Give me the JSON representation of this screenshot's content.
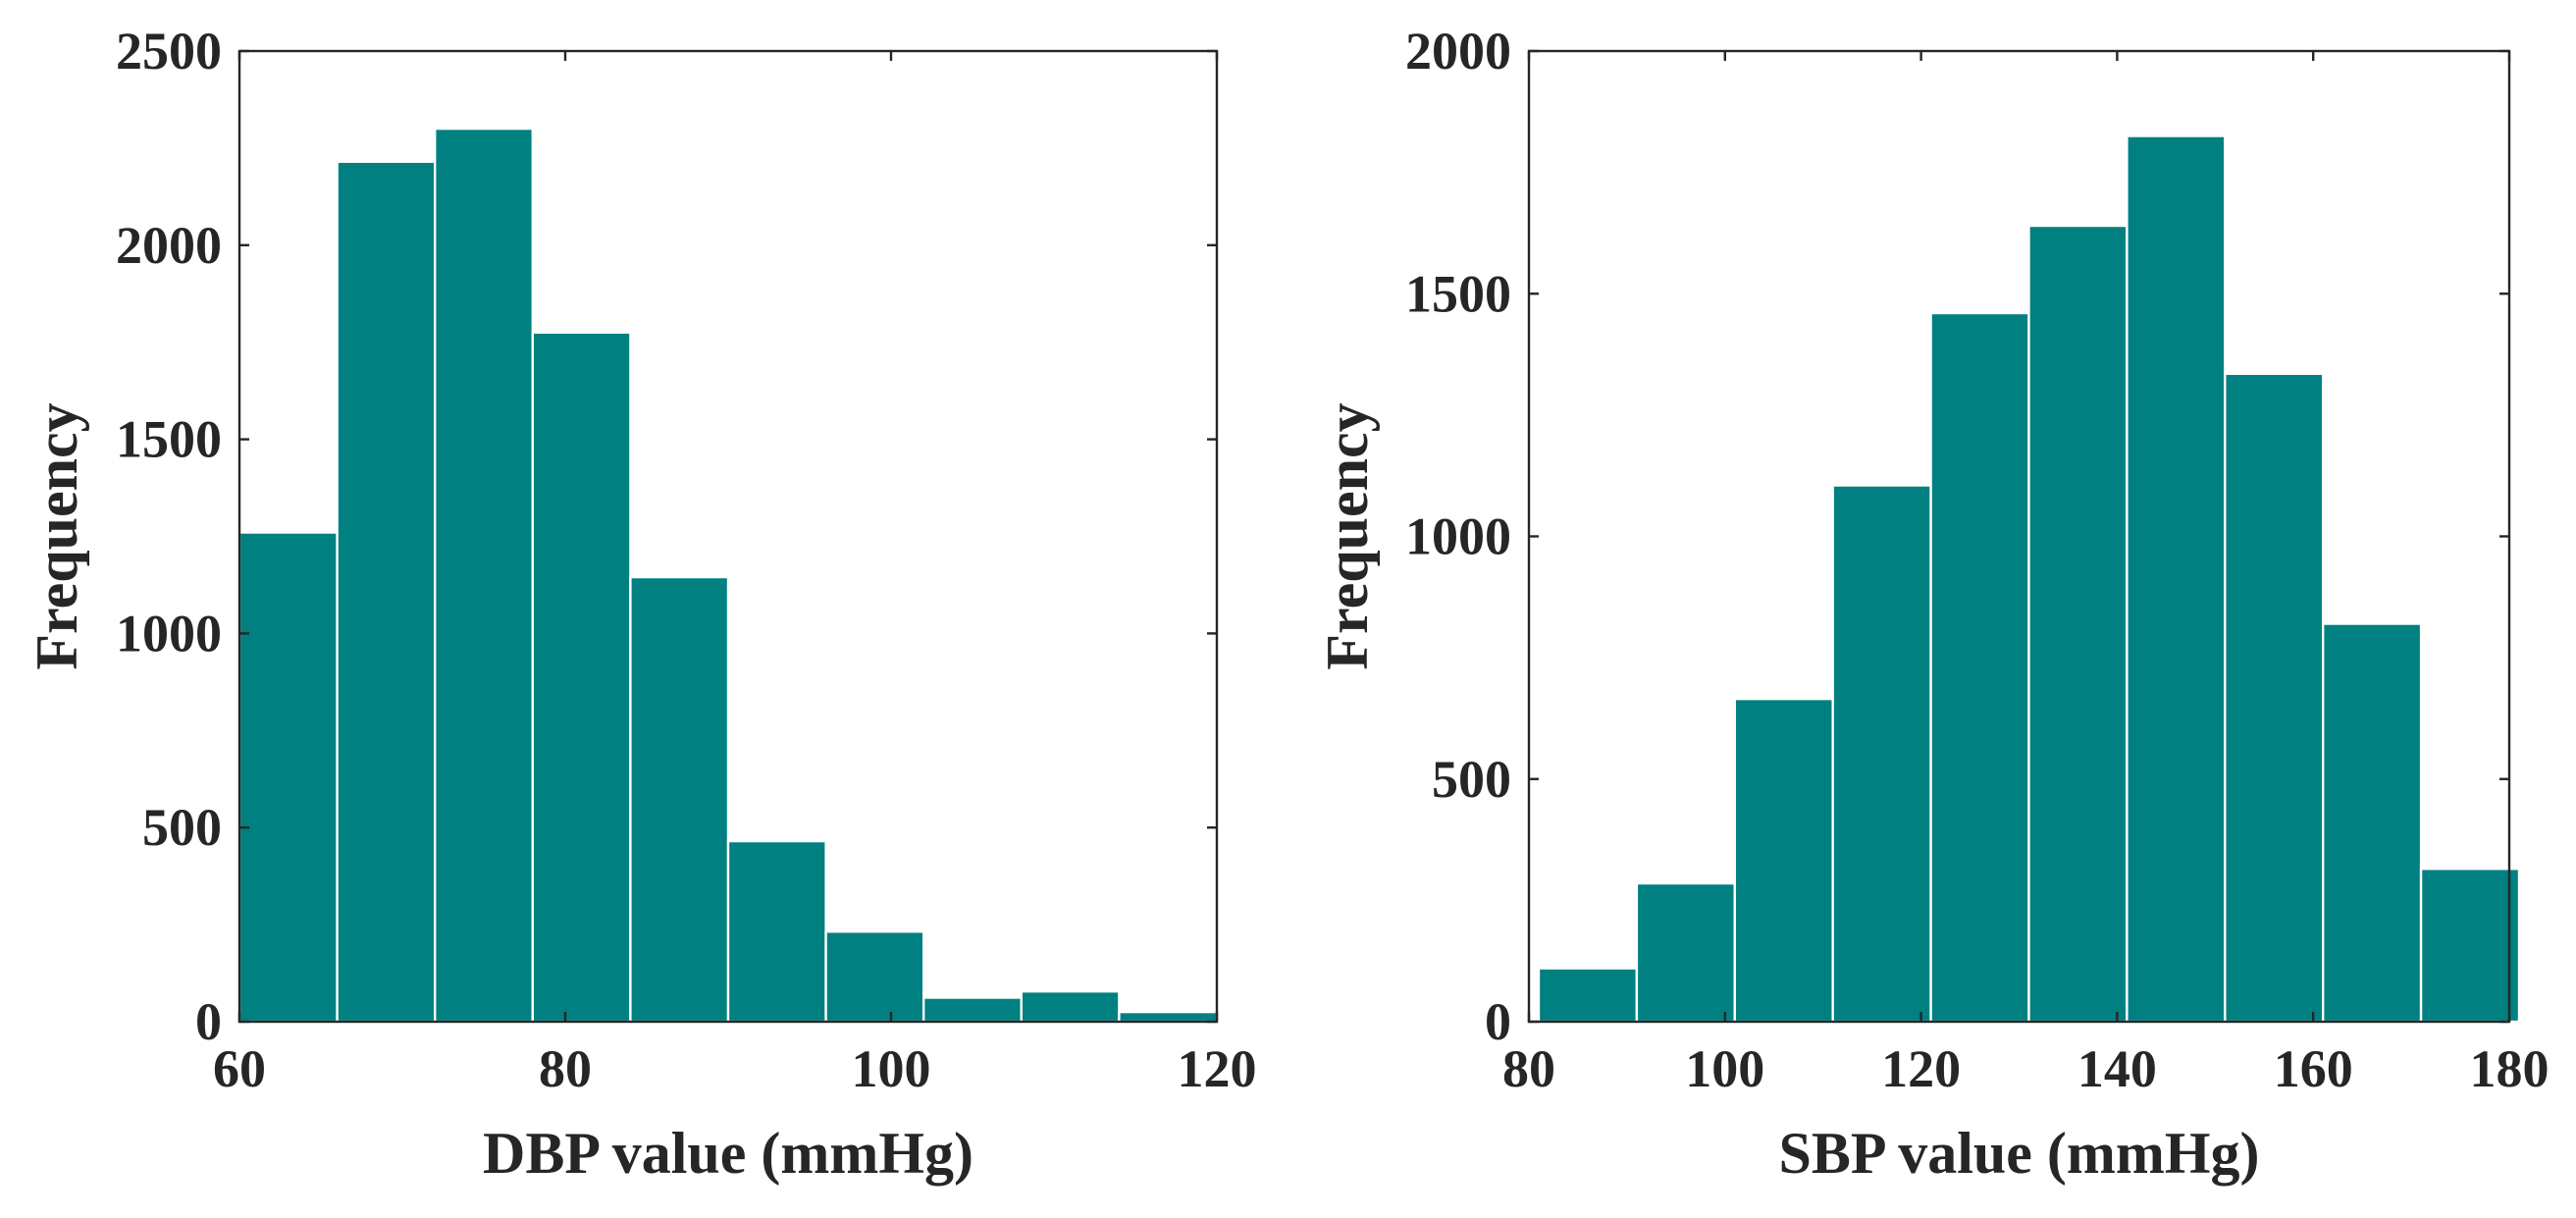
{
  "chart_data": [
    {
      "type": "bar",
      "title": "",
      "xlabel": "DBP value (mmHg)",
      "ylabel": "Frequency",
      "color": "#008080",
      "xlim": [
        60,
        120
      ],
      "ylim": [
        0,
        2500
      ],
      "xticks": [
        60,
        80,
        100,
        120
      ],
      "yticks": [
        0,
        500,
        1000,
        1500,
        2000,
        2500
      ],
      "bins": [
        [
          60,
          66,
          1260
        ],
        [
          66,
          72,
          2215
        ],
        [
          72,
          78,
          2300
        ],
        [
          78,
          84,
          1775
        ],
        [
          84,
          90,
          1145
        ],
        [
          90,
          96,
          465
        ],
        [
          96,
          102,
          232
        ],
        [
          102,
          108,
          62
        ],
        [
          108,
          114,
          78
        ],
        [
          114,
          120,
          25
        ]
      ]
    },
    {
      "type": "bar",
      "title": "",
      "xlabel": "SBP value (mmHg)",
      "ylabel": "Frequency",
      "color": "#008080",
      "xlim": [
        80,
        180
      ],
      "ylim": [
        0,
        2000
      ],
      "xticks": [
        80,
        100,
        120,
        140,
        160,
        180
      ],
      "yticks": [
        0,
        500,
        1000,
        1500,
        2000
      ],
      "bins": [
        [
          81,
          91,
          110
        ],
        [
          91,
          101,
          285
        ],
        [
          101,
          111,
          665
        ],
        [
          111,
          121,
          1105
        ],
        [
          121,
          131,
          1460
        ],
        [
          131,
          141,
          1640
        ],
        [
          141,
          151,
          1825
        ],
        [
          151,
          161,
          1335
        ],
        [
          161,
          171,
          820
        ],
        [
          171,
          181,
          315
        ]
      ]
    }
  ]
}
